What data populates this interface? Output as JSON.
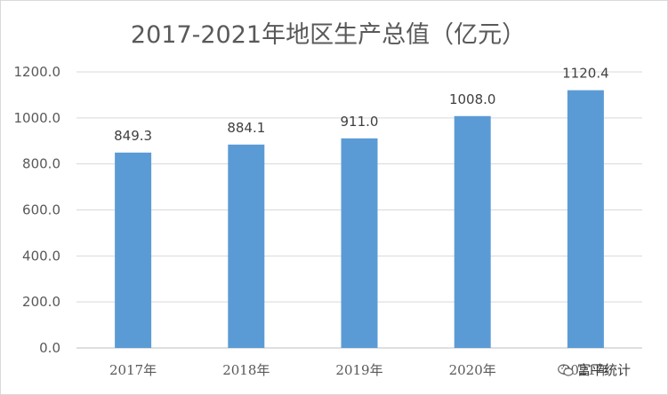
{
  "chart_data": {
    "type": "bar",
    "title": "2017-2021年地区生产总值（亿元）",
    "categories": [
      "2017年",
      "2018年",
      "2019年",
      "2020年",
      "2021年"
    ],
    "values": [
      849.3,
      884.1,
      911.0,
      1008.0,
      1120.4
    ],
    "value_labels": [
      "849.3",
      "884.1",
      "911.0",
      "1008.0",
      "1120.4"
    ],
    "ylim": [
      0,
      1200
    ],
    "yticks": [
      "0.0",
      "200.0",
      "400.0",
      "600.0",
      "800.0",
      "1000.0",
      "1200.0"
    ],
    "grid": true,
    "bar_color": "#5b9bd5"
  },
  "watermark": {
    "text": "富平统计",
    "icon": "wechat-icon"
  }
}
